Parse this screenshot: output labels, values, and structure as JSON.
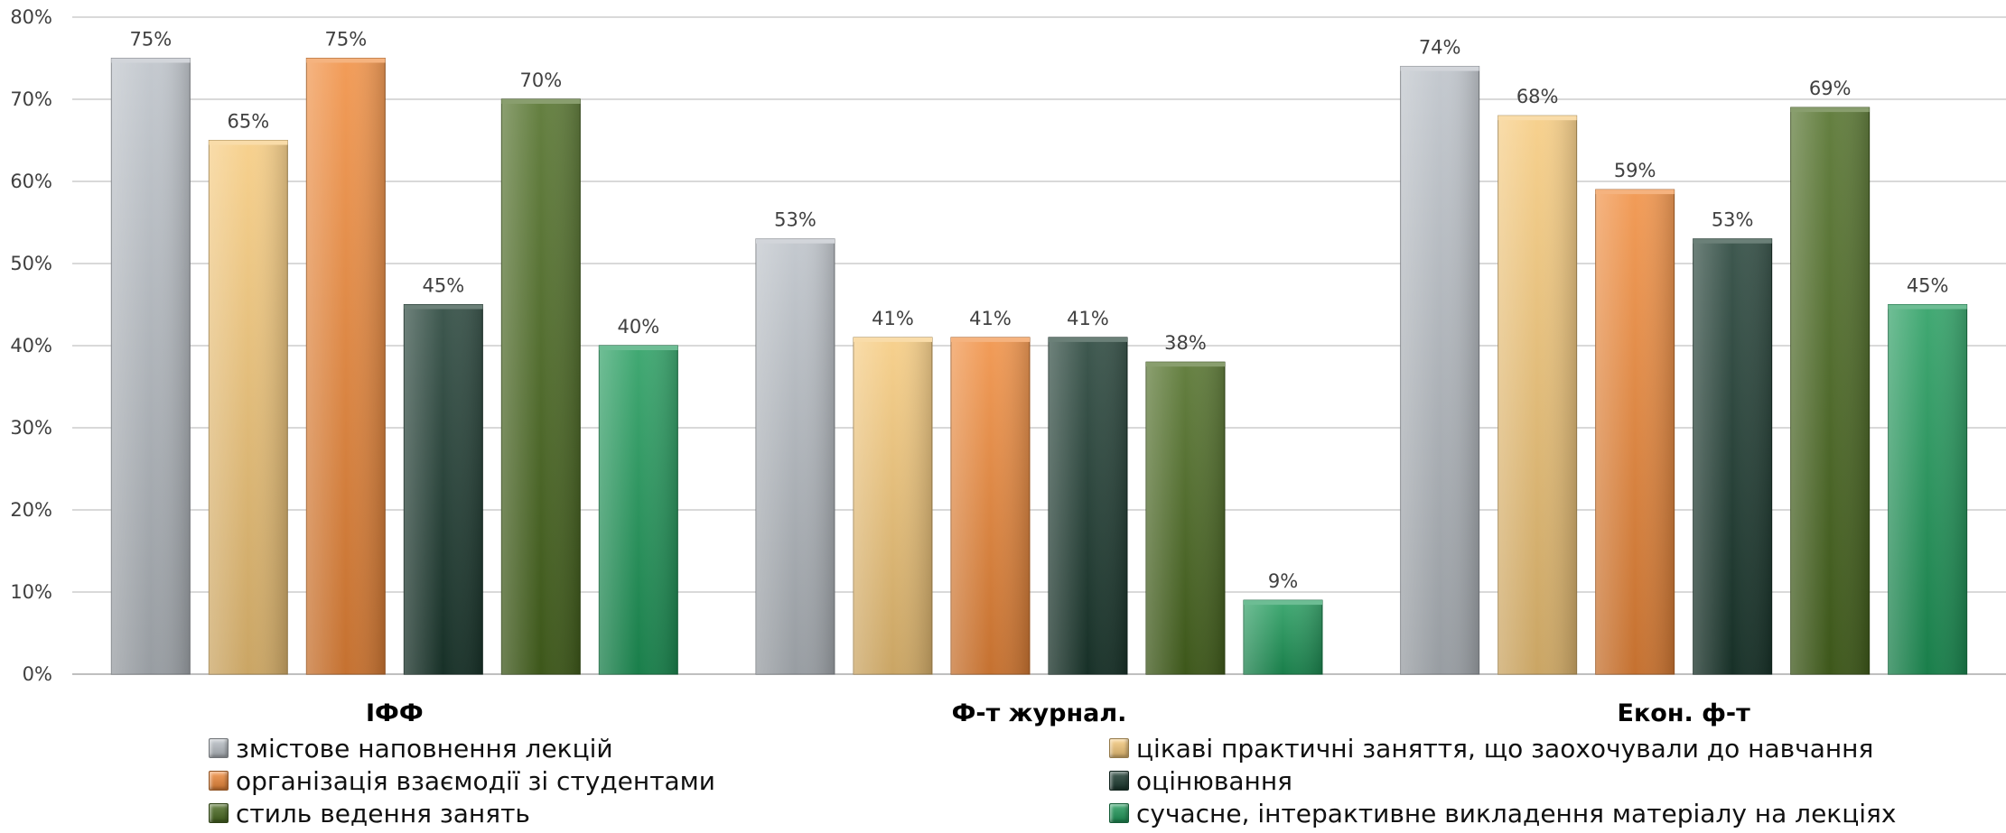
{
  "chart_data": {
    "type": "bar",
    "categories": [
      "ІФФ",
      "Ф-т журнал.",
      "Екон. ф-т"
    ],
    "series": [
      {
        "name": "змістове наповнення лекцій",
        "values": [
          75,
          53,
          74
        ],
        "color": "#b9bfc6"
      },
      {
        "name": "цікаві практичні заняття, що заохочували до навчання",
        "values": [
          65,
          41,
          68
        ],
        "color": "#f6c97a"
      },
      {
        "name": "організація взаємодії зі студентами",
        "values": [
          75,
          41,
          59
        ],
        "color": "#f08a3a"
      },
      {
        "name": "оцінювання",
        "values": [
          45,
          41,
          53
        ],
        "color": "#1c3b30"
      },
      {
        "name": "стиль ведення занять",
        "values": [
          70,
          38,
          69
        ],
        "color": "#4a6a20"
      },
      {
        "name": "сучасне, інтерактивне викладення матеріалу на лекціях",
        "values": [
          40,
          9,
          45
        ],
        "color": "#1f9a5a"
      }
    ],
    "data_labels": [
      [
        "75%",
        "53%",
        "74%"
      ],
      [
        "65%",
        "41%",
        "68%"
      ],
      [
        "75%",
        "41%",
        "59%"
      ],
      [
        "45%",
        "41%",
        "53%"
      ],
      [
        "70%",
        "38%",
        "69%"
      ],
      [
        "40%",
        "9%",
        "45%"
      ]
    ],
    "yticks": [
      "0%",
      "10%",
      "20%",
      "30%",
      "40%",
      "50%",
      "60%",
      "70%",
      "80%"
    ],
    "ylim": [
      0,
      80
    ],
    "grid": true,
    "legend_position": "bottom"
  }
}
